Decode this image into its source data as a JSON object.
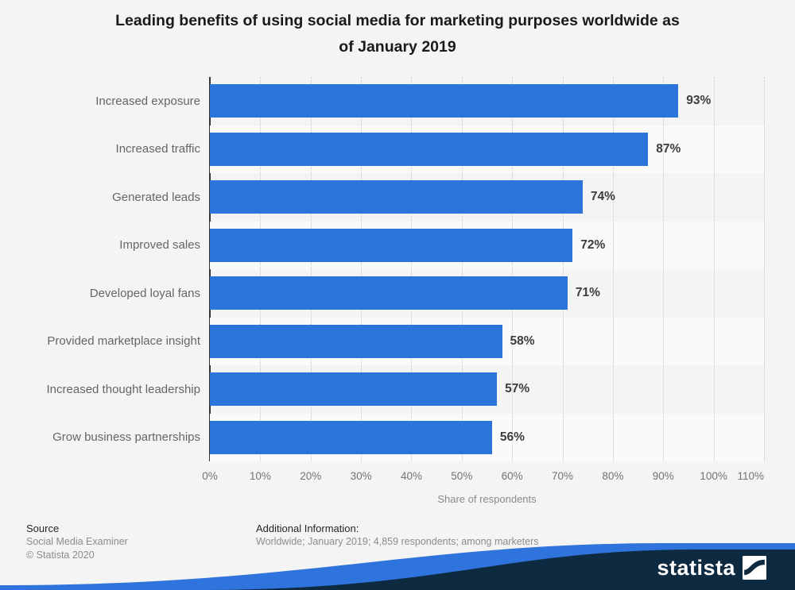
{
  "title": {
    "line1": "Leading benefits of using social media for marketing purposes worldwide as",
    "line2": "of January 2019",
    "full": "Leading benefits of using social media for marketing purposes worldwide as of January 2019"
  },
  "chart_data": {
    "type": "bar",
    "orientation": "horizontal",
    "categories": [
      "Increased exposure",
      "Increased traffic",
      "Generated leads",
      "Improved sales",
      "Developed loyal fans",
      "Provided marketplace insight",
      "Increased thought leadership",
      "Grow business partnerships"
    ],
    "values": [
      93,
      87,
      74,
      72,
      71,
      58,
      57,
      56
    ],
    "value_labels": [
      "93%",
      "87%",
      "74%",
      "72%",
      "71%",
      "58%",
      "57%",
      "56%"
    ],
    "xlabel": "Share of respondents",
    "xlim": [
      0,
      110
    ],
    "xticks": [
      0,
      10,
      20,
      30,
      40,
      50,
      60,
      70,
      80,
      90,
      100,
      110
    ],
    "xtick_labels": [
      "0%",
      "10%",
      "20%",
      "30%",
      "40%",
      "50%",
      "60%",
      "70%",
      "80%",
      "90%",
      "100%",
      "110%"
    ],
    "grid": "vertical-dotted",
    "legend": "none",
    "bar_color": "#2b74d9",
    "row_stripe_color": "#fafafa",
    "background_color": "#f4f4f4"
  },
  "footer": {
    "source_heading": "Source",
    "source_name": "Social Media Examiner",
    "copyright": "© Statista 2020",
    "additional_heading": "Additional Information:",
    "additional_text": "Worldwide; January 2019; 4,859 respondents; among marketers"
  },
  "branding": {
    "wordmark": "statista",
    "banner_navy": "#0e2a40",
    "banner_blue": "#2e74dc"
  }
}
